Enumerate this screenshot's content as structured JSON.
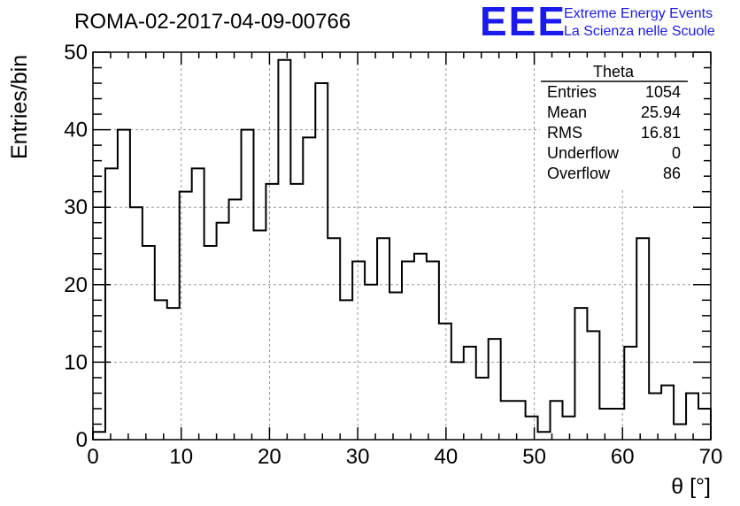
{
  "chart_data": {
    "type": "bar",
    "title": "ROMA-02-2017-04-09-00766",
    "xlabel": "θ [°]",
    "ylabel": "Entries/bin",
    "xlim": [
      0,
      70
    ],
    "ylim": [
      0,
      50
    ],
    "bin_width": 1.4,
    "grid": true,
    "x_ticks": [
      0,
      10,
      20,
      30,
      40,
      50,
      60,
      70
    ],
    "y_ticks": [
      0,
      10,
      20,
      30,
      40,
      50
    ],
    "values": [
      1,
      35,
      40,
      30,
      25,
      18,
      17,
      32,
      35,
      25,
      28,
      31,
      40,
      27,
      33,
      49,
      33,
      39,
      46,
      26,
      18,
      23,
      20,
      26,
      19,
      23,
      24,
      23,
      15,
      10,
      12,
      8,
      13,
      5,
      5,
      3,
      1,
      5,
      3,
      17,
      14,
      4,
      4,
      12,
      26,
      6,
      7,
      2,
      6,
      4
    ],
    "stats_box": {
      "title": "Theta",
      "rows": [
        {
          "label": "Entries",
          "value": "1054"
        },
        {
          "label": "Mean",
          "value": "25.94"
        },
        {
          "label": "RMS",
          "value": "16.81"
        },
        {
          "label": "Underflow",
          "value": "0"
        },
        {
          "label": "Overflow",
          "value": "86"
        }
      ]
    }
  },
  "logo": {
    "text": "EEE",
    "line1": "Extreme Energy Events",
    "line2": "La Scienza nelle Scuole",
    "color": "#1a1aee"
  }
}
